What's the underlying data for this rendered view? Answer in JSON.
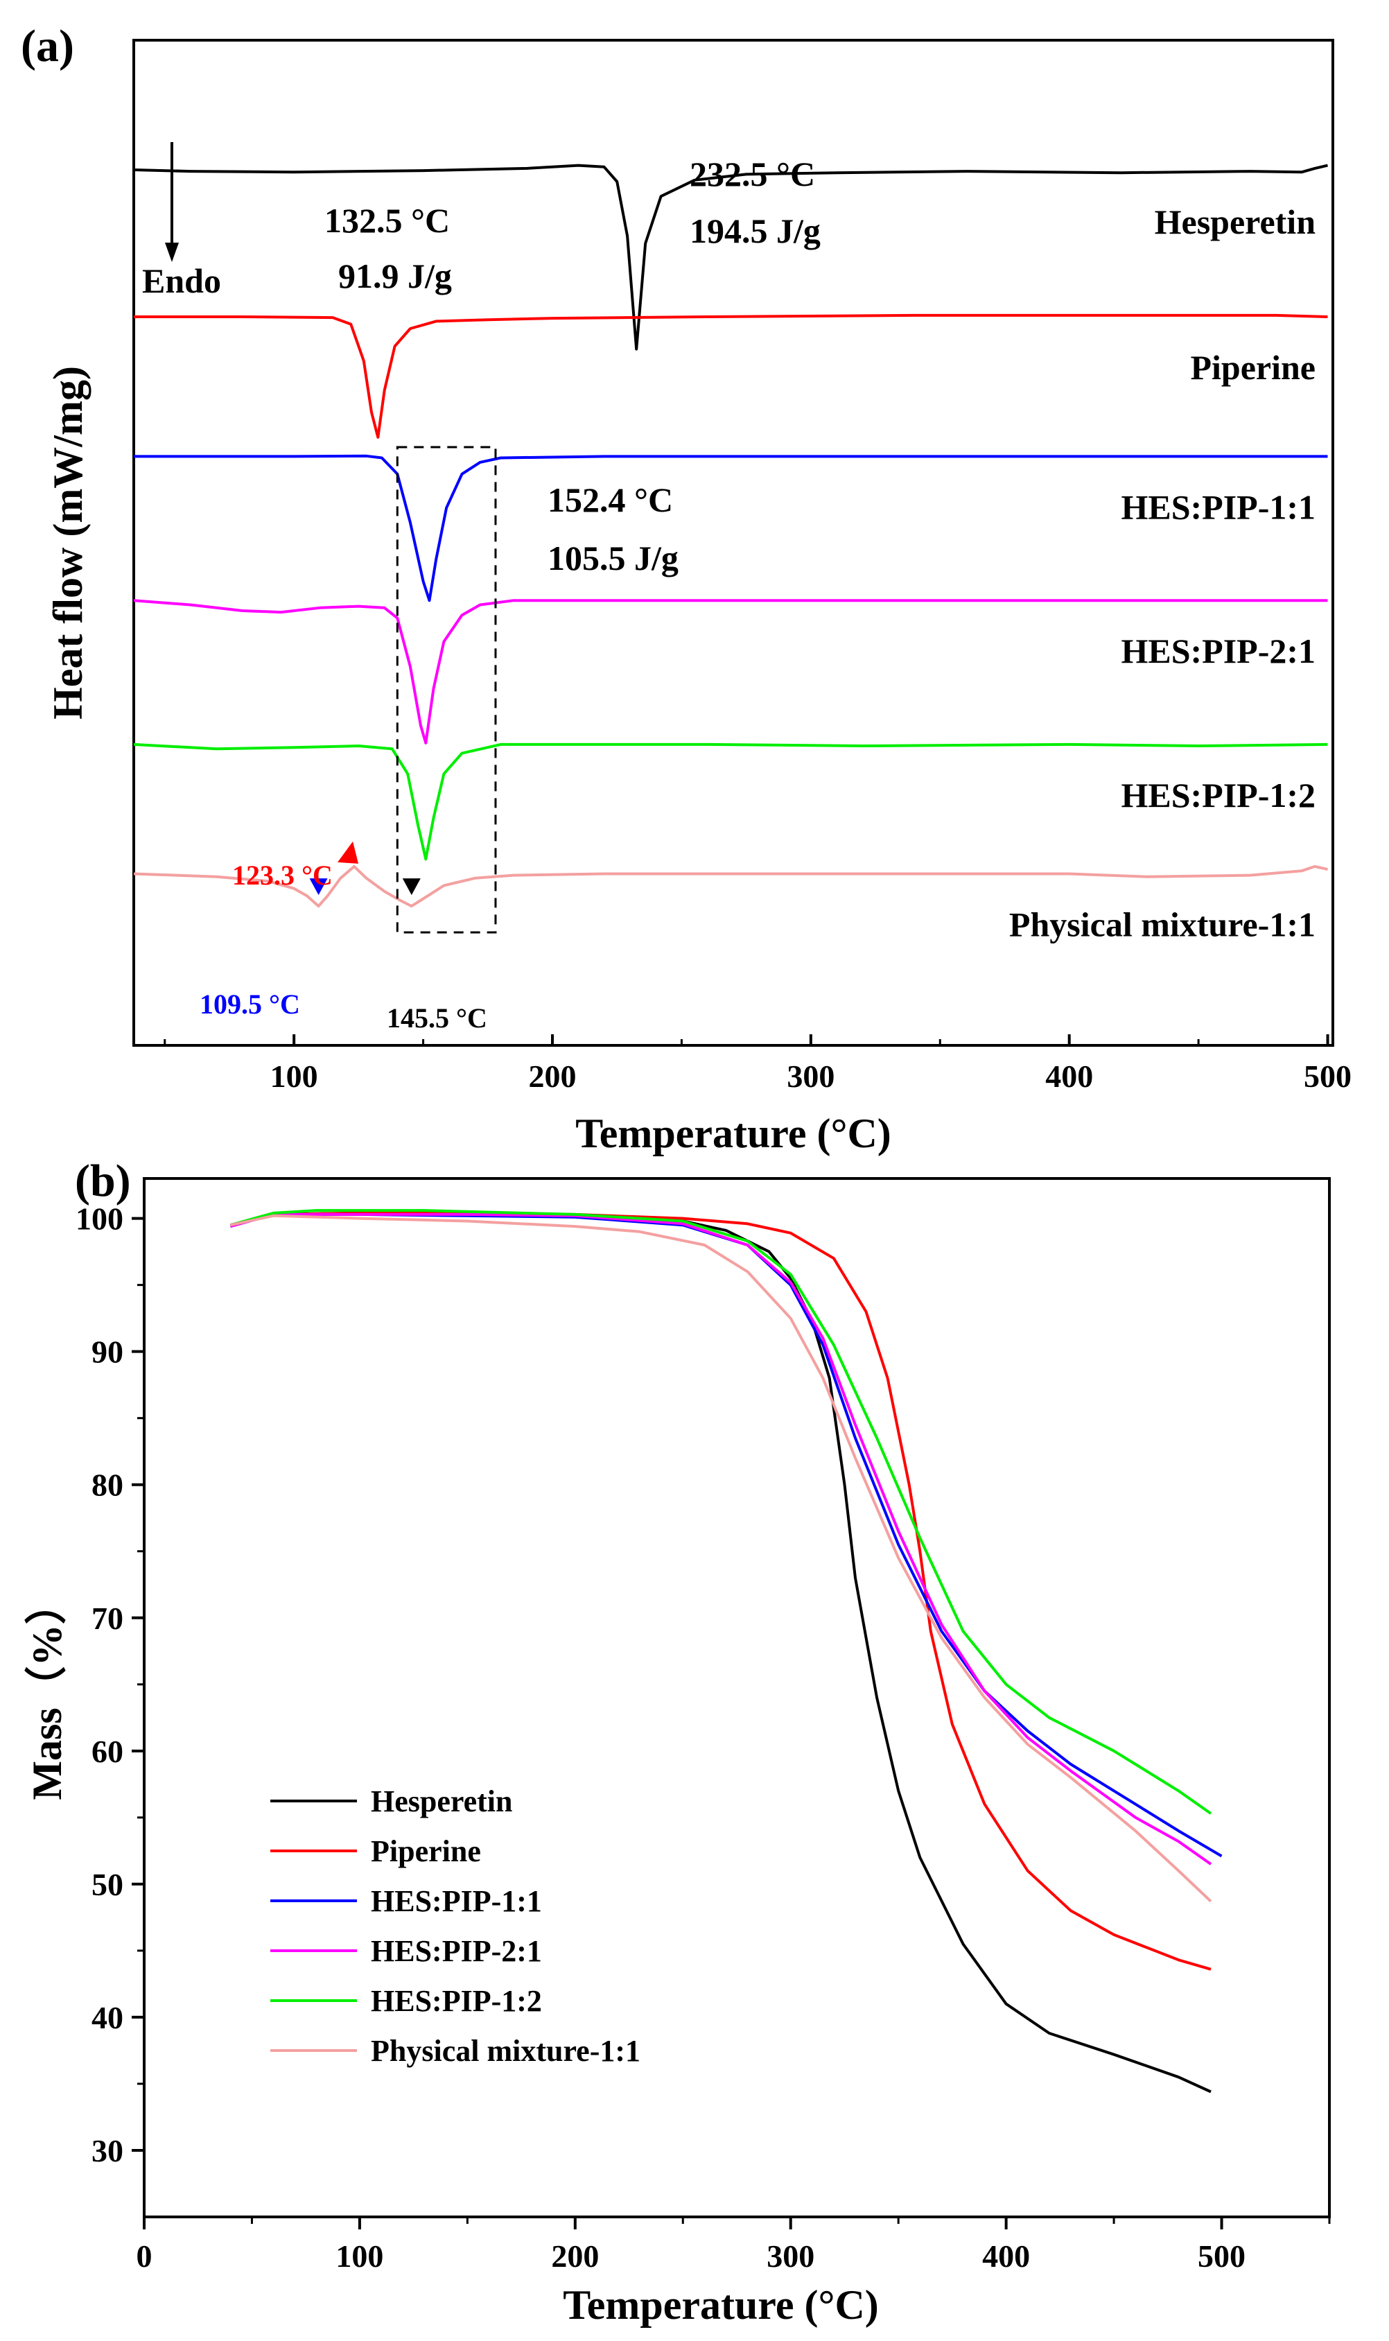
{
  "panel_a": {
    "label": "(a)",
    "endo_label": "Endo",
    "annotations": {
      "hes_temp": "232.5 °C",
      "hes_enthalpy": "194.5 J/g",
      "pip_temp": "132.5 °C",
      "pip_enthalpy": "91.9 J/g",
      "cocrystal_temp": "152.4 °C",
      "cocrystal_enthalpy": "105.5 J/g",
      "pm_red_temp": "123.3 °C",
      "pm_blue_temp": "109.5 °C",
      "pm_black_temp": "145.5 °C"
    }
  },
  "panel_b": {
    "label": "(b)"
  },
  "colors": {
    "Hesperetin": "#000000",
    "Piperine": "#ff0000",
    "HES:PIP-1:1": "#0000ff",
    "HES:PIP-2:1": "#ff00ff",
    "HES:PIP-1:2": "#00ee00",
    "Physical mixture-1:1": "#f4a0a0",
    "dsc_red_marker": "#ff0000",
    "dsc_blue_marker": "#0000ff",
    "dsc_black_marker": "#000000"
  },
  "chart_data": [
    {
      "type": "line",
      "title": "(a)",
      "xlabel": "Temperature (°C)",
      "ylabel": "Heat flow (mW/mg)",
      "xlim": [
        38,
        502
      ],
      "xticks": [
        100,
        200,
        300,
        400,
        500
      ],
      "series": [
        {
          "name": "Hesperetin",
          "label": "Hesperetin",
          "baseline": 1.0,
          "points": [
            [
              38,
              0
            ],
            [
              60,
              -0.01
            ],
            [
              100,
              -0.015
            ],
            [
              150,
              -0.005
            ],
            [
              190,
              0.01
            ],
            [
              210,
              0.03
            ],
            [
              220,
              0.02
            ],
            [
              225,
              -0.08
            ],
            [
              229,
              -0.45
            ],
            [
              232.5,
              -1.22
            ],
            [
              236,
              -0.5
            ],
            [
              242,
              -0.18
            ],
            [
              255,
              -0.07
            ],
            [
              275,
              -0.03
            ],
            [
              310,
              -0.02
            ],
            [
              360,
              -0.01
            ],
            [
              420,
              -0.02
            ],
            [
              470,
              -0.01
            ],
            [
              490,
              -0.015
            ],
            [
              495,
              0.01
            ],
            [
              500,
              0.03
            ]
          ]
        },
        {
          "name": "Piperine",
          "label": "Piperine",
          "baseline": 0.0,
          "points": [
            [
              38,
              0
            ],
            [
              80,
              0
            ],
            [
              115,
              -0.005
            ],
            [
              122,
              -0.05
            ],
            [
              127,
              -0.3
            ],
            [
              130,
              -0.65
            ],
            [
              132.5,
              -0.82
            ],
            [
              135,
              -0.5
            ],
            [
              139,
              -0.2
            ],
            [
              145,
              -0.08
            ],
            [
              155,
              -0.03
            ],
            [
              175,
              -0.02
            ],
            [
              200,
              -0.01
            ],
            [
              260,
              0
            ],
            [
              340,
              0.01
            ],
            [
              420,
              0.01
            ],
            [
              480,
              0.01
            ],
            [
              500,
              0
            ]
          ]
        },
        {
          "name": "HES:PIP-1:1",
          "label": "HES:PIP-1:1",
          "baseline": -0.95,
          "points": [
            [
              38,
              0
            ],
            [
              60,
              0
            ],
            [
              100,
              0
            ],
            [
              128,
              0.003
            ],
            [
              134,
              -0.01
            ],
            [
              140,
              -0.12
            ],
            [
              145,
              -0.45
            ],
            [
              150,
              -0.85
            ],
            [
              152.4,
              -0.98
            ],
            [
              155,
              -0.7
            ],
            [
              159,
              -0.35
            ],
            [
              165,
              -0.12
            ],
            [
              172,
              -0.04
            ],
            [
              180,
              -0.01
            ],
            [
              220,
              0
            ],
            [
              300,
              0
            ],
            [
              400,
              0
            ],
            [
              500,
              0
            ]
          ]
        },
        {
          "name": "HES:PIP-2:1",
          "label": "HES:PIP-2:1",
          "baseline": -1.93,
          "points": [
            [
              38,
              0
            ],
            [
              60,
              -0.03
            ],
            [
              80,
              -0.07
            ],
            [
              95,
              -0.08
            ],
            [
              110,
              -0.05
            ],
            [
              125,
              -0.04
            ],
            [
              135,
              -0.05
            ],
            [
              140,
              -0.12
            ],
            [
              145,
              -0.45
            ],
            [
              149,
              -0.85
            ],
            [
              151,
              -0.97
            ],
            [
              154,
              -0.6
            ],
            [
              158,
              -0.28
            ],
            [
              165,
              -0.1
            ],
            [
              172,
              -0.03
            ],
            [
              185,
              0
            ],
            [
              300,
              0
            ],
            [
              400,
              0
            ],
            [
              500,
              0
            ]
          ]
        },
        {
          "name": "HES:PIP-1:2",
          "label": "HES:PIP-1:2",
          "baseline": -2.91,
          "points": [
            [
              38,
              0
            ],
            [
              70,
              -0.03
            ],
            [
              100,
              -0.02
            ],
            [
              125,
              -0.01
            ],
            [
              138,
              -0.03
            ],
            [
              144,
              -0.2
            ],
            [
              148,
              -0.55
            ],
            [
              151,
              -0.78
            ],
            [
              154,
              -0.5
            ],
            [
              158,
              -0.2
            ],
            [
              165,
              -0.06
            ],
            [
              180,
              0
            ],
            [
              260,
              0
            ],
            [
              320,
              -0.01
            ],
            [
              400,
              0
            ],
            [
              450,
              -0.01
            ],
            [
              500,
              0
            ]
          ]
        },
        {
          "name": "Physical mixture-1:1",
          "label": "Physical mixture-1:1",
          "baseline": -3.79,
          "points": [
            [
              38,
              0
            ],
            [
              70,
              -0.02
            ],
            [
              90,
              -0.05
            ],
            [
              100,
              -0.1
            ],
            [
              105,
              -0.15
            ],
            [
              109.5,
              -0.22
            ],
            [
              113,
              -0.15
            ],
            [
              118,
              -0.03
            ],
            [
              123.3,
              0.05
            ],
            [
              128,
              -0.03
            ],
            [
              135,
              -0.12
            ],
            [
              141,
              -0.18
            ],
            [
              145.5,
              -0.22
            ],
            [
              150,
              -0.17
            ],
            [
              158,
              -0.08
            ],
            [
              170,
              -0.03
            ],
            [
              185,
              -0.01
            ],
            [
              220,
              0
            ],
            [
              300,
              0
            ],
            [
              400,
              0
            ],
            [
              430,
              -0.02
            ],
            [
              470,
              -0.01
            ],
            [
              490,
              0.02
            ],
            [
              495,
              0.05
            ],
            [
              500,
              0.03
            ]
          ]
        }
      ],
      "markers": [
        {
          "name": "peak-123.3",
          "x": 123.3,
          "series": "Physical mixture-1:1",
          "color": "#ff0000"
        },
        {
          "name": "peak-109.5",
          "x": 109.5,
          "series": "Physical mixture-1:1",
          "color": "#0000ff"
        },
        {
          "name": "peak-145.5",
          "x": 145.5,
          "series": "Physical mixture-1:1",
          "color": "#000000"
        }
      ],
      "highlight_box": {
        "x_range": [
          140,
          178
        ]
      }
    },
    {
      "type": "line",
      "title": "(b)",
      "xlabel": "Temperature (°C)",
      "ylabel": "Mass（%）",
      "xlim": [
        0,
        550
      ],
      "ylim": [
        25,
        103
      ],
      "xticks": [
        0,
        100,
        200,
        300,
        400,
        500
      ],
      "yticks": [
        30,
        40,
        50,
        60,
        70,
        80,
        90,
        100
      ],
      "legend_position": "bottom-left",
      "series": [
        {
          "name": "Hesperetin",
          "points": [
            [
              40,
              99.5
            ],
            [
              60,
              100.3
            ],
            [
              100,
              100.4
            ],
            [
              150,
              100.3
            ],
            [
              200,
              100.2
            ],
            [
              250,
              99.8
            ],
            [
              270,
              99.1
            ],
            [
              290,
              97.5
            ],
            [
              300,
              95.5
            ],
            [
              310,
              92.3
            ],
            [
              318,
              88
            ],
            [
              325,
              80
            ],
            [
              330,
              73
            ],
            [
              340,
              64
            ],
            [
              350,
              57
            ],
            [
              360,
              52
            ],
            [
              380,
              45.5
            ],
            [
              400,
              41
            ],
            [
              420,
              38.8
            ],
            [
              450,
              37.2
            ],
            [
              480,
              35.5
            ],
            [
              495,
              34.4
            ]
          ]
        },
        {
          "name": "Piperine",
          "points": [
            [
              40,
              99.5
            ],
            [
              60,
              100.3
            ],
            [
              100,
              100.4
            ],
            [
              150,
              100.4
            ],
            [
              200,
              100.3
            ],
            [
              250,
              100
            ],
            [
              280,
              99.6
            ],
            [
              300,
              98.9
            ],
            [
              320,
              97
            ],
            [
              335,
              93
            ],
            [
              345,
              88
            ],
            [
              355,
              80
            ],
            [
              360,
              75
            ],
            [
              365,
              69
            ],
            [
              375,
              62
            ],
            [
              390,
              56
            ],
            [
              410,
              51
            ],
            [
              430,
              48
            ],
            [
              450,
              46.2
            ],
            [
              480,
              44.3
            ],
            [
              495,
              43.6
            ]
          ]
        },
        {
          "name": "HES:PIP-1:1",
          "points": [
            [
              40,
              99.4
            ],
            [
              60,
              100.3
            ],
            [
              100,
              100.3
            ],
            [
              150,
              100.2
            ],
            [
              200,
              100.1
            ],
            [
              250,
              99.5
            ],
            [
              280,
              98
            ],
            [
              300,
              95
            ],
            [
              315,
              90.5
            ],
            [
              330,
              83.5
            ],
            [
              350,
              75.5
            ],
            [
              370,
              69
            ],
            [
              390,
              64.5
            ],
            [
              410,
              61.5
            ],
            [
              430,
              59
            ],
            [
              460,
              56
            ],
            [
              480,
              54
            ],
            [
              500,
              52.1
            ]
          ]
        },
        {
          "name": "HES:PIP-2:1",
          "points": [
            [
              40,
              99.4
            ],
            [
              60,
              100.3
            ],
            [
              100,
              100.3
            ],
            [
              150,
              100.3
            ],
            [
              200,
              100.2
            ],
            [
              250,
              99.6
            ],
            [
              280,
              98
            ],
            [
              300,
              95.2
            ],
            [
              315,
              91
            ],
            [
              330,
              84.5
            ],
            [
              350,
              76.5
            ],
            [
              370,
              69.5
            ],
            [
              390,
              64.5
            ],
            [
              410,
              61
            ],
            [
              430,
              58.5
            ],
            [
              460,
              55
            ],
            [
              480,
              53.2
            ],
            [
              495,
              51.5
            ]
          ]
        },
        {
          "name": "HES:PIP-1:2",
          "points": [
            [
              40,
              99.5
            ],
            [
              60,
              100.4
            ],
            [
              80,
              100.6
            ],
            [
              130,
              100.6
            ],
            [
              200,
              100.3
            ],
            [
              250,
              99.8
            ],
            [
              280,
              98.3
            ],
            [
              300,
              95.8
            ],
            [
              320,
              90.5
            ],
            [
              340,
              83.5
            ],
            [
              360,
              76
            ],
            [
              380,
              69
            ],
            [
              400,
              65
            ],
            [
              420,
              62.5
            ],
            [
              450,
              60
            ],
            [
              480,
              57
            ],
            [
              495,
              55.3
            ]
          ]
        },
        {
          "name": "Physical mixture-1:1",
          "points": [
            [
              40,
              99.5
            ],
            [
              60,
              100.2
            ],
            [
              100,
              100
            ],
            [
              150,
              99.8
            ],
            [
              200,
              99.4
            ],
            [
              230,
              99
            ],
            [
              260,
              98
            ],
            [
              280,
              96
            ],
            [
              300,
              92.5
            ],
            [
              315,
              88
            ],
            [
              330,
              82
            ],
            [
              350,
              74.5
            ],
            [
              370,
              68.5
            ],
            [
              390,
              64
            ],
            [
              410,
              60.5
            ],
            [
              430,
              58
            ],
            [
              460,
              54
            ],
            [
              480,
              51
            ],
            [
              495,
              48.7
            ]
          ]
        }
      ]
    }
  ]
}
